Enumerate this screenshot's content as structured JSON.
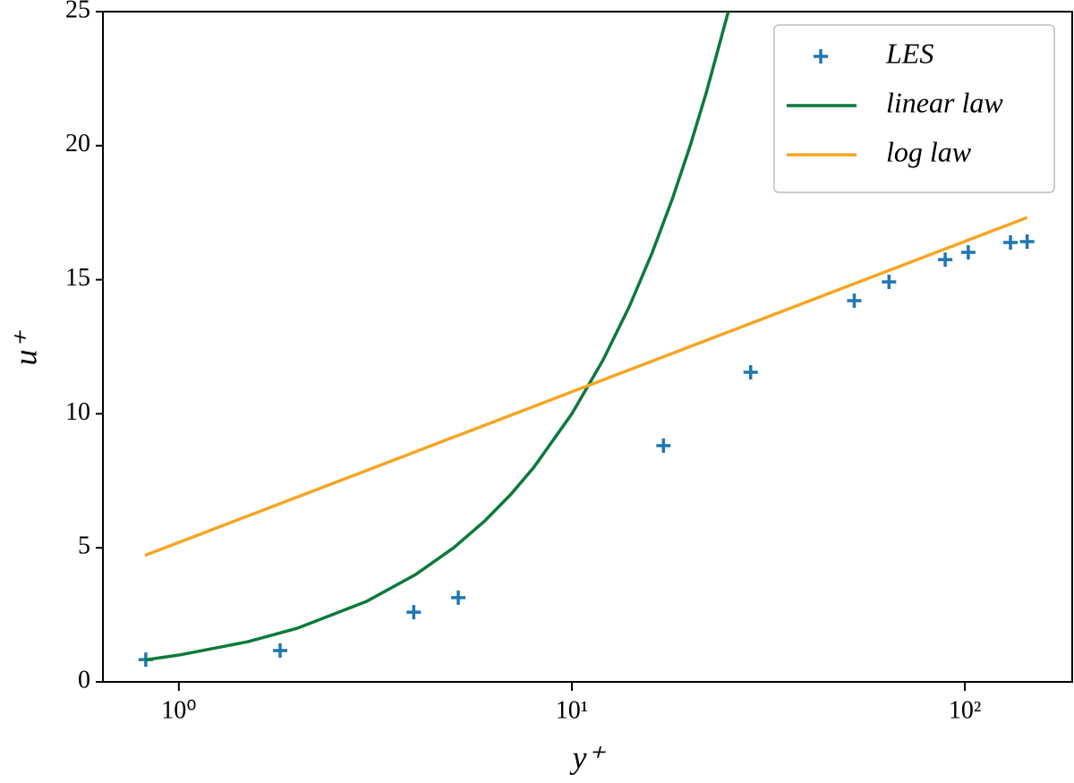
{
  "chart_data": {
    "type": "line",
    "xlabel": "y⁺",
    "ylabel": "u⁺",
    "xscale": "log",
    "xlim": [
      0.641,
      187.5
    ],
    "ylim": [
      0,
      25
    ],
    "xticks": [
      {
        "value": 1,
        "label": "10⁰"
      },
      {
        "value": 10,
        "label": "10¹"
      },
      {
        "value": 100,
        "label": "10²"
      }
    ],
    "yticks": [
      0,
      5,
      10,
      15,
      20,
      25
    ],
    "legend": "upper right",
    "series": [
      {
        "name": "LES",
        "color": "#1f77b4",
        "mode": "markers",
        "x": [
          0.824,
          1.81,
          3.96,
          5.14,
          17.1,
          28.5,
          52.3,
          64.1,
          89.1,
          102,
          130.6,
          144
        ],
        "values": [
          0.83,
          1.17,
          2.6,
          3.14,
          8.81,
          11.55,
          14.22,
          14.92,
          15.75,
          16.02,
          16.39,
          16.42
        ]
      },
      {
        "name": "linear law",
        "color": "#0b7a3a",
        "mode": "lines",
        "x": [
          0.82,
          1,
          1.5,
          2,
          3,
          4,
          5,
          6,
          7,
          8,
          10,
          12,
          14,
          16,
          18,
          20,
          22,
          25
        ],
        "values": [
          0.82,
          1,
          1.5,
          2,
          3,
          4,
          5,
          6,
          7,
          8,
          10,
          12,
          14,
          16,
          18,
          20,
          22,
          25
        ]
      },
      {
        "name": "log law",
        "color": "#f5a623",
        "mode": "lines",
        "x": [
          0.82,
          144
        ],
        "values": [
          4.72,
          17.32
        ]
      }
    ]
  }
}
